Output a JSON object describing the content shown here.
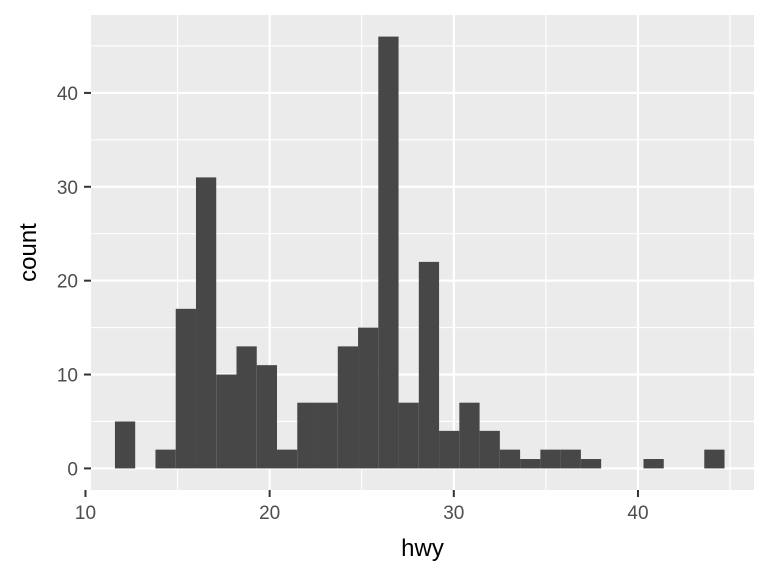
{
  "chart_data": {
    "type": "bar",
    "title": "",
    "xlabel": "hwy",
    "ylabel": "count",
    "xlim": [
      10.3,
      46.3
    ],
    "ylim": [
      -2.3,
      48.3
    ],
    "x_ticks": [
      10,
      20,
      30,
      40
    ],
    "y_ticks": [
      0,
      10,
      20,
      30,
      40
    ],
    "bin_width": 1.1,
    "bins": [
      {
        "x0": 11.6,
        "x1": 12.7,
        "count": 5
      },
      {
        "x0": 13.8,
        "x1": 14.9,
        "count": 2
      },
      {
        "x0": 14.9,
        "x1": 16.0,
        "count": 17
      },
      {
        "x0": 16.0,
        "x1": 17.1,
        "count": 31
      },
      {
        "x0": 17.1,
        "x1": 18.2,
        "count": 10
      },
      {
        "x0": 18.2,
        "x1": 19.3,
        "count": 13
      },
      {
        "x0": 19.3,
        "x1": 20.4,
        "count": 11
      },
      {
        "x0": 20.4,
        "x1": 21.5,
        "count": 2
      },
      {
        "x0": 21.5,
        "x1": 22.6,
        "count": 7
      },
      {
        "x0": 22.6,
        "x1": 23.7,
        "count": 7
      },
      {
        "x0": 23.7,
        "x1": 24.8,
        "count": 13
      },
      {
        "x0": 24.8,
        "x1": 25.9,
        "count": 15
      },
      {
        "x0": 25.9,
        "x1": 27.0,
        "count": 46
      },
      {
        "x0": 27.0,
        "x1": 28.1,
        "count": 7
      },
      {
        "x0": 28.1,
        "x1": 29.2,
        "count": 22
      },
      {
        "x0": 29.2,
        "x1": 30.3,
        "count": 4
      },
      {
        "x0": 30.3,
        "x1": 31.4,
        "count": 7
      },
      {
        "x0": 31.4,
        "x1": 32.5,
        "count": 4
      },
      {
        "x0": 32.5,
        "x1": 33.6,
        "count": 2
      },
      {
        "x0": 33.6,
        "x1": 34.7,
        "count": 1
      },
      {
        "x0": 34.7,
        "x1": 35.8,
        "count": 2
      },
      {
        "x0": 35.8,
        "x1": 36.9,
        "count": 2
      },
      {
        "x0": 36.9,
        "x1": 38.0,
        "count": 1
      },
      {
        "x0": 40.3,
        "x1": 41.4,
        "count": 1
      },
      {
        "x0": 43.6,
        "x1": 44.7,
        "count": 2
      }
    ],
    "grid": true,
    "legend": "none",
    "colors": {
      "panel_background": "#ebebeb",
      "grid_major": "#ffffff",
      "bar_fill": "#474747",
      "tick_text": "#4d4d4d",
      "axis_ticks": "#333333"
    }
  }
}
